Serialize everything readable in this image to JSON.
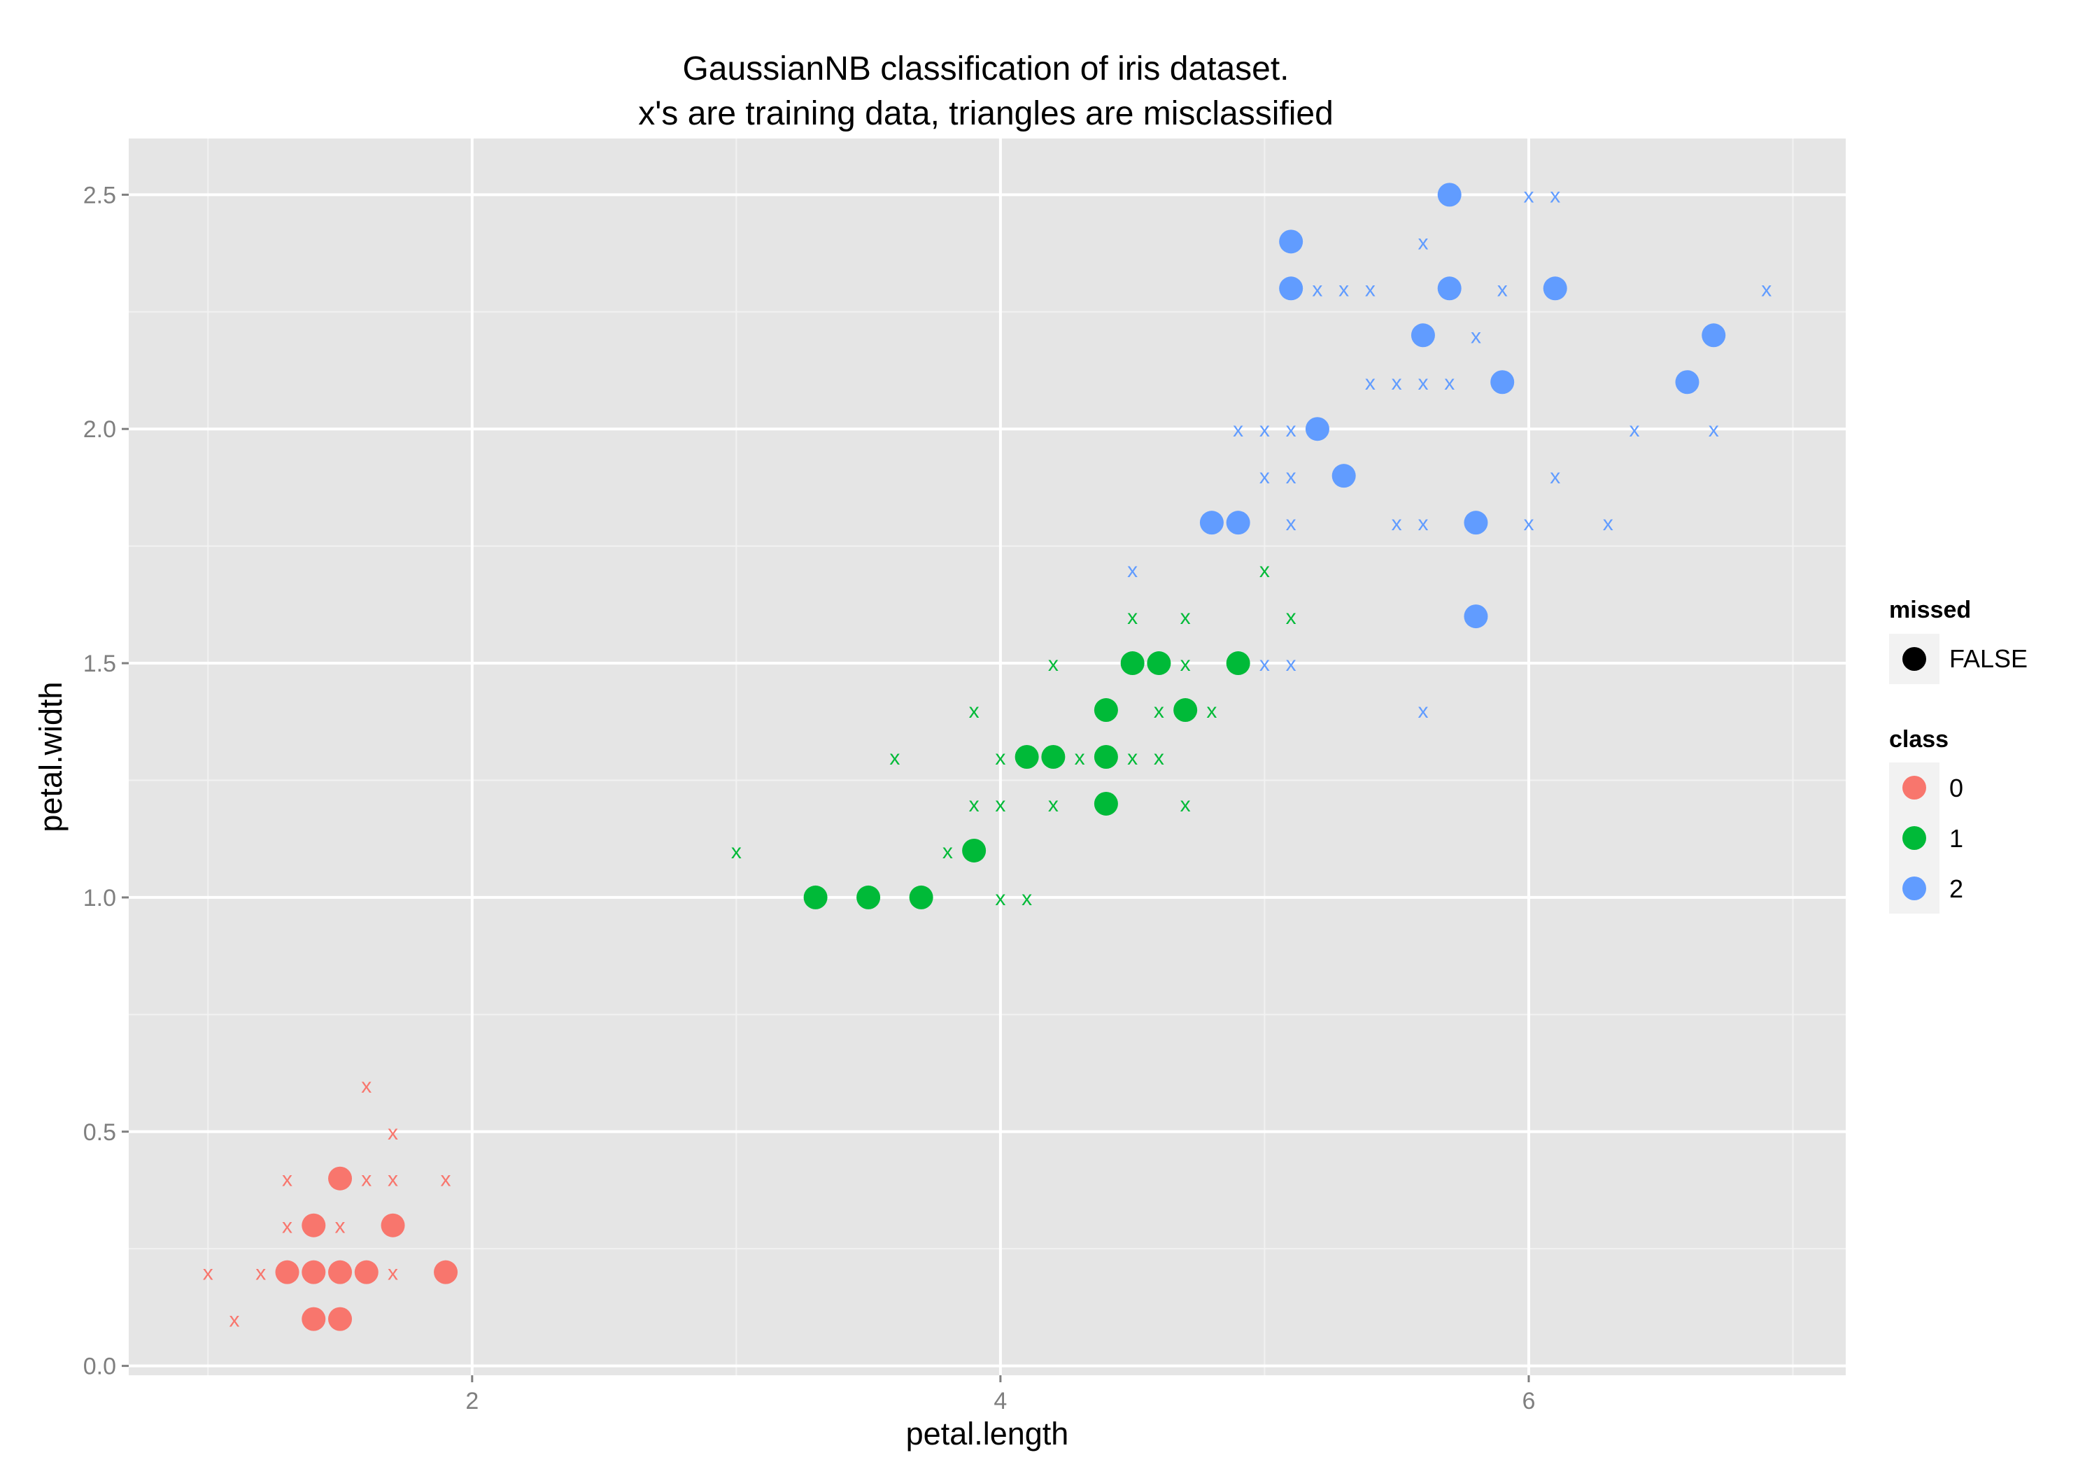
{
  "chart_data": {
    "type": "scatter",
    "title": "GaussianNB classification of iris dataset.",
    "subtitle": "x's are training data, triangles are misclassified",
    "xlabel": "petal.length",
    "ylabel": "petal.width",
    "xlim": [
      0.7,
      7.2
    ],
    "ylim": [
      -0.02,
      2.62
    ],
    "x_ticks": [
      2,
      4,
      6
    ],
    "x_tick_labels": [
      "2",
      "4",
      "6"
    ],
    "y_ticks": [
      0,
      0.5,
      1,
      1.5,
      2,
      2.5
    ],
    "y_tick_labels": [
      "0.0",
      "0.5",
      "1.0",
      "1.5",
      "2.0",
      "2.5"
    ],
    "grid": true,
    "legend": {
      "position": "right",
      "groups": [
        {
          "title": "missed",
          "entries": [
            {
              "label": "FALSE",
              "color": "#000000"
            }
          ]
        },
        {
          "title": "class",
          "entries": [
            {
              "label": "0",
              "color": "#F8766D"
            },
            {
              "label": "1",
              "color": "#00BA38"
            },
            {
              "label": "2",
              "color": "#619CFF"
            }
          ]
        }
      ]
    },
    "colors": {
      "0": "#F8766D",
      "1": "#00BA38",
      "2": "#619CFF"
    },
    "series": [
      {
        "class": "0",
        "marker": "circle",
        "points": [
          [
            1.3,
            0.2
          ],
          [
            1.4,
            0.2
          ],
          [
            1.5,
            0.2
          ],
          [
            1.6,
            0.2
          ],
          [
            1.9,
            0.2
          ],
          [
            1.4,
            0.3
          ],
          [
            1.7,
            0.3
          ],
          [
            1.5,
            0.4
          ],
          [
            1.4,
            0.1
          ],
          [
            1.5,
            0.1
          ]
        ]
      },
      {
        "class": "0",
        "marker": "x",
        "points": [
          [
            1.0,
            0.2
          ],
          [
            1.2,
            0.2
          ],
          [
            1.7,
            0.2
          ],
          [
            1.1,
            0.1
          ],
          [
            1.3,
            0.3
          ],
          [
            1.5,
            0.3
          ],
          [
            1.3,
            0.4
          ],
          [
            1.6,
            0.4
          ],
          [
            1.7,
            0.4
          ],
          [
            1.9,
            0.4
          ],
          [
            1.7,
            0.5
          ],
          [
            1.6,
            0.6
          ]
        ]
      },
      {
        "class": "1",
        "marker": "circle",
        "points": [
          [
            3.3,
            1.0
          ],
          [
            3.5,
            1.0
          ],
          [
            3.7,
            1.0
          ],
          [
            3.9,
            1.1
          ],
          [
            4.1,
            1.3
          ],
          [
            4.2,
            1.3
          ],
          [
            4.4,
            1.3
          ],
          [
            4.4,
            1.2
          ],
          [
            4.4,
            1.4
          ],
          [
            4.7,
            1.4
          ],
          [
            4.5,
            1.5
          ],
          [
            4.6,
            1.5
          ],
          [
            4.9,
            1.5
          ]
        ]
      },
      {
        "class": "1",
        "marker": "x",
        "points": [
          [
            3.0,
            1.1
          ],
          [
            3.8,
            1.1
          ],
          [
            3.6,
            1.3
          ],
          [
            4.0,
            1.3
          ],
          [
            4.3,
            1.3
          ],
          [
            4.5,
            1.3
          ],
          [
            4.6,
            1.3
          ],
          [
            3.9,
            1.2
          ],
          [
            4.0,
            1.2
          ],
          [
            4.2,
            1.2
          ],
          [
            4.7,
            1.2
          ],
          [
            4.0,
            1.0
          ],
          [
            4.1,
            1.0
          ],
          [
            3.9,
            1.4
          ],
          [
            4.6,
            1.4
          ],
          [
            4.8,
            1.4
          ],
          [
            4.2,
            1.5
          ],
          [
            4.7,
            1.5
          ],
          [
            4.5,
            1.6
          ],
          [
            4.7,
            1.6
          ],
          [
            5.1,
            1.6
          ],
          [
            5.0,
            1.7
          ],
          [
            4.8,
            1.8
          ]
        ]
      },
      {
        "class": "2",
        "marker": "circle",
        "points": [
          [
            4.8,
            1.8
          ],
          [
            4.9,
            1.8
          ],
          [
            5.8,
            1.8
          ],
          [
            5.8,
            1.6
          ],
          [
            5.3,
            1.9
          ],
          [
            5.2,
            2.0
          ],
          [
            5.9,
            2.1
          ],
          [
            6.6,
            2.1
          ],
          [
            5.6,
            2.2
          ],
          [
            6.7,
            2.2
          ],
          [
            5.1,
            2.3
          ],
          [
            5.7,
            2.3
          ],
          [
            6.1,
            2.3
          ],
          [
            5.1,
            2.4
          ],
          [
            5.7,
            2.5
          ]
        ]
      },
      {
        "class": "2",
        "marker": "x",
        "points": [
          [
            4.5,
            1.7
          ],
          [
            5.0,
            1.5
          ],
          [
            5.1,
            1.5
          ],
          [
            5.6,
            1.4
          ],
          [
            5.1,
            1.8
          ],
          [
            5.5,
            1.8
          ],
          [
            5.6,
            1.8
          ],
          [
            6.0,
            1.8
          ],
          [
            6.3,
            1.8
          ],
          [
            5.0,
            1.9
          ],
          [
            5.1,
            1.9
          ],
          [
            6.1,
            1.9
          ],
          [
            4.9,
            2.0
          ],
          [
            5.0,
            2.0
          ],
          [
            5.1,
            2.0
          ],
          [
            6.4,
            2.0
          ],
          [
            6.7,
            2.0
          ],
          [
            5.4,
            2.1
          ],
          [
            5.5,
            2.1
          ],
          [
            5.6,
            2.1
          ],
          [
            5.7,
            2.1
          ],
          [
            5.8,
            2.2
          ],
          [
            5.2,
            2.3
          ],
          [
            5.3,
            2.3
          ],
          [
            5.4,
            2.3
          ],
          [
            5.9,
            2.3
          ],
          [
            6.9,
            2.3
          ],
          [
            5.6,
            2.4
          ],
          [
            6.0,
            2.5
          ],
          [
            6.1,
            2.5
          ]
        ]
      }
    ]
  }
}
